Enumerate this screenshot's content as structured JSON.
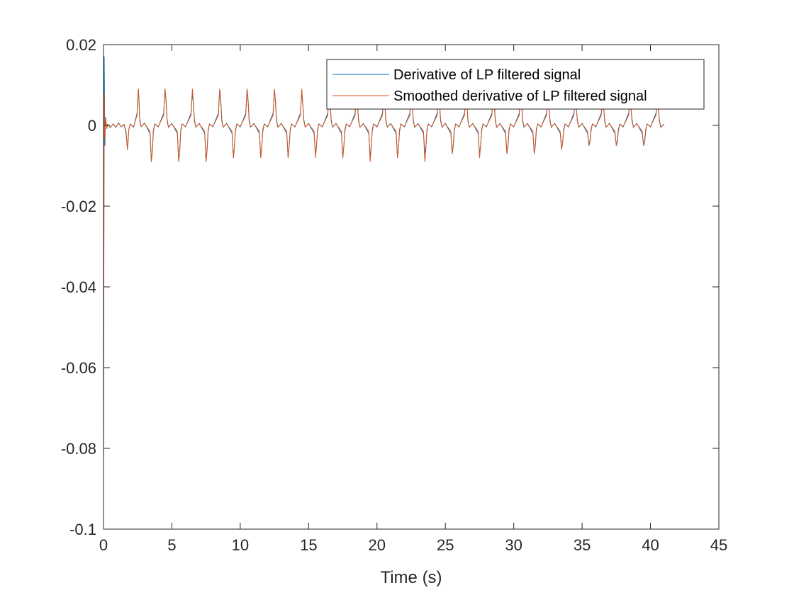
{
  "chart_data": {
    "type": "line",
    "title": "",
    "xlabel": "Time (s)",
    "ylabel": "",
    "xlim": [
      0,
      45
    ],
    "ylim": [
      -0.1,
      0.02
    ],
    "xticks": [
      0,
      5,
      10,
      15,
      20,
      25,
      30,
      35,
      40,
      45
    ],
    "xtick_labels": [
      "0",
      "5",
      "10",
      "15",
      "20",
      "25",
      "30",
      "35",
      "40",
      "45"
    ],
    "yticks": [
      -0.1,
      -0.08,
      -0.06,
      -0.04,
      -0.02,
      0,
      0.02
    ],
    "ytick_labels": [
      "-0.1",
      "-0.08",
      "-0.06",
      "-0.04",
      "-0.02",
      "0",
      "0.02"
    ],
    "grid": false,
    "box": true,
    "legend_position": "top-right",
    "series": [
      {
        "name": "Derivative of LP filtered signal",
        "color": "#0072BD",
        "x": [
          0.0,
          0.05,
          0.1,
          0.15,
          0.2,
          0.25,
          0.3,
          0.5,
          0.7,
          0.9,
          1.1,
          1.3,
          1.5,
          1.65,
          1.75,
          1.8,
          1.85,
          1.95,
          2.2,
          2.45,
          2.55,
          2.6,
          2.65,
          2.75,
          3.0,
          3.4,
          3.5,
          3.58,
          3.65,
          3.75,
          4.0,
          4.4,
          4.5,
          4.58,
          4.65,
          4.75,
          5.0,
          5.4,
          5.5,
          5.58,
          5.65,
          5.75,
          6.0,
          6.4,
          6.5,
          6.58,
          6.65,
          6.75,
          7.0,
          7.4,
          7.5,
          7.58,
          7.65,
          7.75,
          8.0,
          8.4,
          8.5,
          8.58,
          8.65,
          8.75,
          9.0,
          9.4,
          9.5,
          9.58,
          9.65,
          9.75,
          10.0,
          10.4,
          10.5,
          10.58,
          10.65,
          10.75,
          11.0,
          11.4,
          11.5,
          11.58,
          11.65,
          11.75,
          12.0,
          12.4,
          12.5,
          12.58,
          12.65,
          12.75,
          13.0,
          13.4,
          13.5,
          13.58,
          13.65,
          13.75,
          14.0,
          14.4,
          14.5,
          14.58,
          14.65,
          14.75,
          15.0,
          15.4,
          15.5,
          15.58,
          15.65,
          15.75,
          16.0,
          16.4,
          16.5,
          16.58,
          16.65,
          16.75,
          17.0,
          17.4,
          17.5,
          17.58,
          17.65,
          17.75,
          18.0,
          18.4,
          18.5,
          18.58,
          18.65,
          18.75,
          19.0,
          19.4,
          19.5,
          19.58,
          19.65,
          19.75,
          20.0,
          20.4,
          20.5,
          20.58,
          20.65,
          20.75,
          21.0,
          21.4,
          21.5,
          21.58,
          21.65,
          21.75,
          22.0,
          22.4,
          22.5,
          22.58,
          22.65,
          22.75,
          23.0,
          23.4,
          23.5,
          23.58,
          23.65,
          23.75,
          24.0,
          24.4,
          24.5,
          24.58,
          24.65,
          24.75,
          25.0,
          25.4,
          25.5,
          25.58,
          25.65,
          25.75,
          26.0,
          26.4,
          26.5,
          26.58,
          26.65,
          26.75,
          27.0,
          27.4,
          27.5,
          27.58,
          27.65,
          27.75,
          28.0,
          28.4,
          28.5,
          28.58,
          28.65,
          28.75,
          29.0,
          29.4,
          29.5,
          29.58,
          29.65,
          29.75,
          30.0,
          30.4,
          30.5,
          30.58,
          30.65,
          30.75,
          31.0,
          31.4,
          31.5,
          31.58,
          31.65,
          31.75,
          32.0,
          32.4,
          32.5,
          32.58,
          32.65,
          32.75,
          33.0,
          33.4,
          33.5,
          33.58,
          33.65,
          33.75,
          34.0,
          34.4,
          34.5,
          34.58,
          34.65,
          34.75,
          35.0,
          35.4,
          35.5,
          35.58,
          35.65,
          35.75,
          36.0,
          36.4,
          36.5,
          36.58,
          36.65,
          36.75,
          37.0,
          37.4,
          37.5,
          37.58,
          37.65,
          37.75,
          38.0,
          38.4,
          38.5,
          38.58,
          38.65,
          38.75,
          39.0,
          39.4,
          39.5,
          39.58,
          39.65,
          39.75,
          40.0,
          40.4,
          40.5,
          40.58,
          40.65,
          40.75,
          41.0
        ],
        "y": [
          -0.088,
          0.017,
          -0.005,
          0.002,
          0.0005,
          -0.0008,
          0.0003,
          -0.0006,
          0.0004,
          -0.0005,
          0.0006,
          -0.0004,
          0.0003,
          -0.002,
          -0.006,
          -0.0035,
          -0.001,
          0.0004,
          -0.0005,
          0.003,
          0.009,
          0.006,
          0.0015,
          -0.0004,
          0.0006,
          -0.002,
          -0.009,
          -0.006,
          -0.0015,
          0.0004,
          -0.0004,
          0.003,
          0.009,
          0.006,
          0.0015,
          -0.0005,
          0.0005,
          -0.002,
          -0.009,
          -0.006,
          -0.0015,
          0.0004,
          -0.0004,
          0.003,
          0.008,
          0.005,
          0.0015,
          -0.0005,
          0.0005,
          -0.002,
          -0.009,
          -0.006,
          -0.0015,
          0.0004,
          -0.0004,
          0.003,
          0.009,
          0.006,
          0.0015,
          -0.0005,
          0.0005,
          -0.002,
          -0.008,
          -0.005,
          -0.0015,
          0.0004,
          -0.0004,
          0.003,
          0.009,
          0.006,
          0.0015,
          -0.0005,
          0.0005,
          -0.002,
          -0.008,
          -0.005,
          -0.0015,
          0.0004,
          -0.0004,
          0.003,
          0.009,
          0.006,
          0.0015,
          -0.0005,
          0.0005,
          -0.002,
          -0.008,
          -0.005,
          -0.0015,
          0.0004,
          -0.0004,
          0.003,
          0.008,
          0.005,
          0.0015,
          -0.0005,
          0.0005,
          -0.002,
          -0.007,
          -0.005,
          -0.0015,
          0.0004,
          -0.0004,
          0.003,
          0.008,
          0.005,
          0.0015,
          -0.0005,
          0.0005,
          -0.002,
          -0.008,
          -0.005,
          -0.0015,
          0.0004,
          -0.0004,
          0.003,
          0.007,
          0.005,
          0.0015,
          -0.0005,
          0.0005,
          -0.002,
          -0.008,
          -0.005,
          -0.0015,
          0.0004,
          -0.0004,
          0.003,
          0.008,
          0.005,
          0.0015,
          -0.0005,
          0.0005,
          -0.002,
          -0.008,
          -0.005,
          -0.0015,
          0.0004,
          -0.0004,
          0.003,
          0.008,
          0.005,
          0.0015,
          -0.0005,
          0.0005,
          -0.002,
          -0.007,
          -0.005,
          -0.0015,
          0.0004,
          -0.0004,
          0.003,
          0.007,
          0.005,
          0.0015,
          -0.0005,
          0.0005,
          -0.002,
          -0.007,
          -0.005,
          -0.0015,
          0.0004,
          -0.0004,
          0.003,
          0.007,
          0.005,
          0.0015,
          -0.0005,
          0.0005,
          -0.002,
          -0.007,
          -0.005,
          -0.0015,
          0.0004,
          -0.0004,
          0.003,
          0.007,
          0.005,
          0.0015,
          -0.0005,
          0.0005,
          -0.002,
          -0.007,
          -0.005,
          -0.0015,
          0.0004,
          -0.0004,
          0.003,
          0.007,
          0.005,
          0.0015,
          -0.0005,
          0.0005,
          -0.002,
          -0.007,
          -0.005,
          -0.0015,
          0.0004,
          -0.0004,
          0.003,
          0.006,
          0.004,
          0.0015,
          -0.0005,
          0.0005,
          -0.002,
          -0.006,
          -0.004,
          -0.0015,
          0.0004,
          -0.0004,
          0.003,
          0.006,
          0.004,
          0.0015,
          -0.0005,
          0.0005,
          -0.002,
          -0.005,
          -0.004,
          -0.0015,
          0.0004,
          -0.0004,
          0.003,
          0.006,
          0.004,
          0.0015,
          -0.0005,
          0.0005,
          -0.002,
          -0.005,
          -0.004,
          -0.0015,
          0.0004,
          -0.0004,
          0.003,
          0.005,
          0.004,
          0.0015,
          -0.0005,
          0.0005,
          -0.002,
          -0.005,
          -0.004,
          -0.0015,
          0.0004,
          -0.0004,
          0.003,
          0.005,
          0.004,
          0.0015,
          -0.0005,
          0.0003
        ]
      },
      {
        "name": "Smoothed derivative of LP filtered signal",
        "color": "#D95319",
        "x": [
          0.0,
          0.05,
          0.1,
          0.15,
          0.2,
          0.25,
          0.3,
          0.5,
          0.7,
          0.9,
          1.1,
          1.3,
          1.5,
          1.65,
          1.75,
          1.8,
          1.85,
          1.95,
          2.2,
          2.45,
          2.55,
          2.6,
          2.65,
          2.75,
          3.0,
          3.4,
          3.5,
          3.58,
          3.65,
          3.75,
          4.0,
          4.4,
          4.5,
          4.58,
          4.65,
          4.75,
          5.0,
          5.4,
          5.5,
          5.58,
          5.65,
          5.75,
          6.0,
          6.4,
          6.5,
          6.58,
          6.65,
          6.75,
          7.0,
          7.4,
          7.5,
          7.58,
          7.65,
          7.75,
          8.0,
          8.4,
          8.5,
          8.58,
          8.65,
          8.75,
          9.0,
          9.4,
          9.5,
          9.58,
          9.65,
          9.75,
          10.0,
          10.4,
          10.5,
          10.58,
          10.65,
          10.75,
          11.0,
          11.4,
          11.5,
          11.58,
          11.65,
          11.75,
          12.0,
          12.4,
          12.5,
          12.58,
          12.65,
          12.75,
          13.0,
          13.4,
          13.5,
          13.58,
          13.65,
          13.75,
          14.0,
          14.4,
          14.5,
          14.58,
          14.65,
          14.75,
          15.0,
          15.4,
          15.5,
          15.58,
          15.65,
          15.75,
          16.0,
          16.4,
          16.5,
          16.58,
          16.65,
          16.75,
          17.0,
          17.4,
          17.5,
          17.58,
          17.65,
          17.75,
          18.0,
          18.4,
          18.5,
          18.58,
          18.65,
          18.75,
          19.0,
          19.4,
          19.5,
          19.58,
          19.65,
          19.75,
          20.0,
          20.4,
          20.5,
          20.58,
          20.65,
          20.75,
          21.0,
          21.4,
          21.5,
          21.58,
          21.65,
          21.75,
          22.0,
          22.4,
          22.5,
          22.58,
          22.65,
          22.75,
          23.0,
          23.4,
          23.5,
          23.58,
          23.65,
          23.75,
          24.0,
          24.4,
          24.5,
          24.58,
          24.65,
          24.75,
          25.0,
          25.4,
          25.5,
          25.58,
          25.65,
          25.75,
          26.0,
          26.4,
          26.5,
          26.58,
          26.65,
          26.75,
          27.0,
          27.4,
          27.5,
          27.58,
          27.65,
          27.75,
          28.0,
          28.4,
          28.5,
          28.58,
          28.65,
          28.75,
          29.0,
          29.4,
          29.5,
          29.58,
          29.65,
          29.75,
          30.0,
          30.4,
          30.5,
          30.58,
          30.65,
          30.75,
          31.0,
          31.4,
          31.5,
          31.58,
          31.65,
          31.75,
          32.0,
          32.4,
          32.5,
          32.58,
          32.65,
          32.75,
          33.0,
          33.4,
          33.5,
          33.58,
          33.65,
          33.75,
          34.0,
          34.4,
          34.5,
          34.58,
          34.65,
          34.75,
          35.0,
          35.4,
          35.5,
          35.58,
          35.65,
          35.75,
          36.0,
          36.4,
          36.5,
          36.58,
          36.65,
          36.75,
          37.0,
          37.4,
          37.5,
          37.58,
          37.65,
          37.75,
          38.0,
          38.4,
          38.5,
          38.58,
          38.65,
          38.75,
          39.0,
          39.4,
          39.5,
          39.58,
          39.65,
          39.75,
          40.0,
          40.4,
          40.5,
          40.58,
          40.65,
          40.75,
          41.0
        ],
        "y": [
          -0.085,
          0.008,
          -0.003,
          0.0015,
          0.0003,
          -0.0006,
          0.0002,
          -0.0005,
          0.0003,
          -0.0004,
          0.0005,
          -0.0003,
          0.0002,
          -0.0015,
          -0.006,
          -0.004,
          -0.001,
          0.0003,
          -0.0004,
          0.0025,
          0.009,
          0.0055,
          0.001,
          -0.0003,
          0.0005,
          -0.0015,
          -0.009,
          -0.0055,
          -0.001,
          0.0003,
          -0.0003,
          0.0025,
          0.009,
          0.0055,
          0.001,
          -0.0004,
          0.0004,
          -0.0015,
          -0.009,
          -0.0055,
          -0.001,
          0.0003,
          -0.0003,
          0.0025,
          0.009,
          0.005,
          0.001,
          -0.0004,
          0.0004,
          -0.0015,
          -0.009,
          -0.0055,
          -0.001,
          0.0003,
          -0.0003,
          0.0025,
          0.009,
          0.0055,
          0.001,
          -0.0004,
          0.0004,
          -0.0015,
          -0.008,
          -0.005,
          -0.001,
          0.0003,
          -0.0003,
          0.0025,
          0.009,
          0.0055,
          0.001,
          -0.0004,
          0.0004,
          -0.0015,
          -0.008,
          -0.005,
          -0.001,
          0.0003,
          -0.0003,
          0.0025,
          0.009,
          0.0055,
          0.001,
          -0.0004,
          0.0004,
          -0.0015,
          -0.008,
          -0.005,
          -0.001,
          0.0003,
          -0.0003,
          0.0025,
          0.009,
          0.005,
          0.001,
          -0.0004,
          0.0004,
          -0.0015,
          -0.008,
          -0.005,
          -0.001,
          0.0003,
          -0.0003,
          0.0025,
          0.008,
          0.005,
          0.001,
          -0.0004,
          0.0004,
          -0.0015,
          -0.008,
          -0.005,
          -0.001,
          0.0003,
          -0.0003,
          0.0025,
          0.008,
          0.005,
          0.001,
          -0.0004,
          0.0004,
          -0.0015,
          -0.009,
          -0.0055,
          -0.001,
          0.0003,
          -0.0003,
          0.0025,
          0.008,
          0.005,
          0.001,
          -0.0004,
          0.0004,
          -0.0015,
          -0.008,
          -0.005,
          -0.001,
          0.0003,
          -0.0003,
          0.0025,
          0.008,
          0.005,
          0.001,
          -0.0004,
          0.0004,
          -0.0015,
          -0.009,
          -0.0055,
          -0.001,
          0.0003,
          -0.0003,
          0.0025,
          0.008,
          0.005,
          0.001,
          -0.0004,
          0.0004,
          -0.0015,
          -0.007,
          -0.0045,
          -0.001,
          0.0003,
          -0.0003,
          0.0025,
          0.008,
          0.005,
          0.001,
          -0.0004,
          0.0004,
          -0.0015,
          -0.008,
          -0.005,
          -0.001,
          0.0003,
          -0.0003,
          0.0025,
          0.008,
          0.005,
          0.001,
          -0.0004,
          0.0004,
          -0.0015,
          -0.007,
          -0.0045,
          -0.001,
          0.0003,
          -0.0003,
          0.0025,
          0.008,
          0.005,
          0.001,
          -0.0004,
          0.0004,
          -0.0015,
          -0.007,
          -0.0045,
          -0.001,
          0.0003,
          -0.0003,
          0.0025,
          0.007,
          0.0045,
          0.001,
          -0.0004,
          0.0004,
          -0.0015,
          -0.006,
          -0.004,
          -0.001,
          0.0003,
          -0.0003,
          0.0025,
          0.007,
          0.0045,
          0.001,
          -0.0004,
          0.0004,
          -0.0015,
          -0.005,
          -0.0035,
          -0.001,
          0.0003,
          -0.0003,
          0.0025,
          0.007,
          0.0045,
          0.001,
          -0.0004,
          0.0004,
          -0.0015,
          -0.005,
          -0.0035,
          -0.001,
          0.0003,
          -0.0003,
          0.0025,
          0.006,
          0.004,
          0.001,
          -0.0004,
          0.0004,
          -0.0015,
          -0.005,
          -0.0035,
          -0.001,
          0.0003,
          -0.0003,
          0.0025,
          0.006,
          0.004,
          0.001,
          -0.0004,
          0.0002
        ]
      }
    ]
  }
}
